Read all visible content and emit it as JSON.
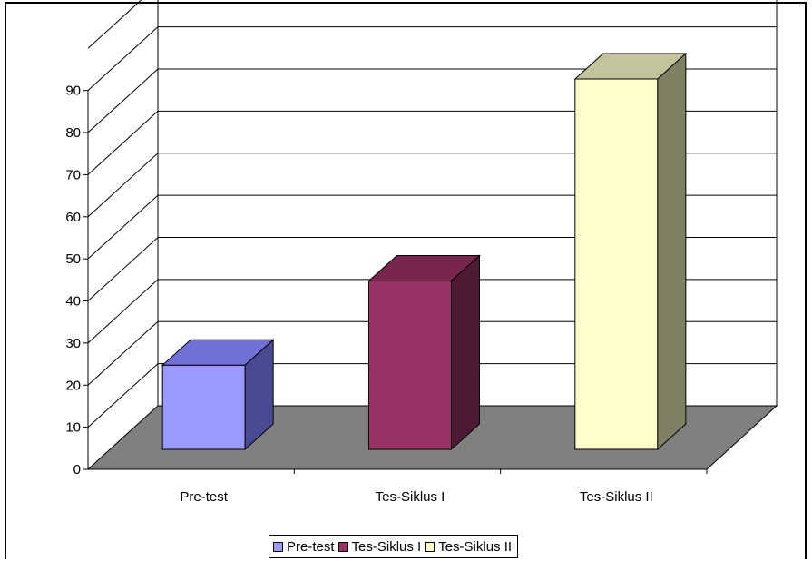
{
  "chart_data": {
    "type": "bar",
    "style": "3d-column",
    "categories": [
      "Pre-test",
      "Tes-Siklus I",
      "Tes-Siklus II"
    ],
    "values": [
      20,
      40,
      88
    ],
    "colors": {
      "Pre-test": {
        "front": "#9999ff",
        "top": "#7070d8",
        "side": "#4a4a94"
      },
      "Tes-Siklus I": {
        "front": "#993366",
        "top": "#782550",
        "side": "#4f1a36"
      },
      "Tes-Siklus II": {
        "front": "#ffffcc",
        "top": "#c4c49c",
        "side": "#808064"
      }
    },
    "floor_color": "#808080",
    "ylim": [
      0,
      90
    ],
    "yticks": [
      "0",
      "10",
      "20",
      "30",
      "40",
      "50",
      "60",
      "70",
      "80",
      "90"
    ],
    "grid": true,
    "legend": {
      "position": "bottom",
      "entries": [
        "Pre-test",
        "Tes-Siklus I",
        "Tes-Siklus II"
      ]
    }
  }
}
